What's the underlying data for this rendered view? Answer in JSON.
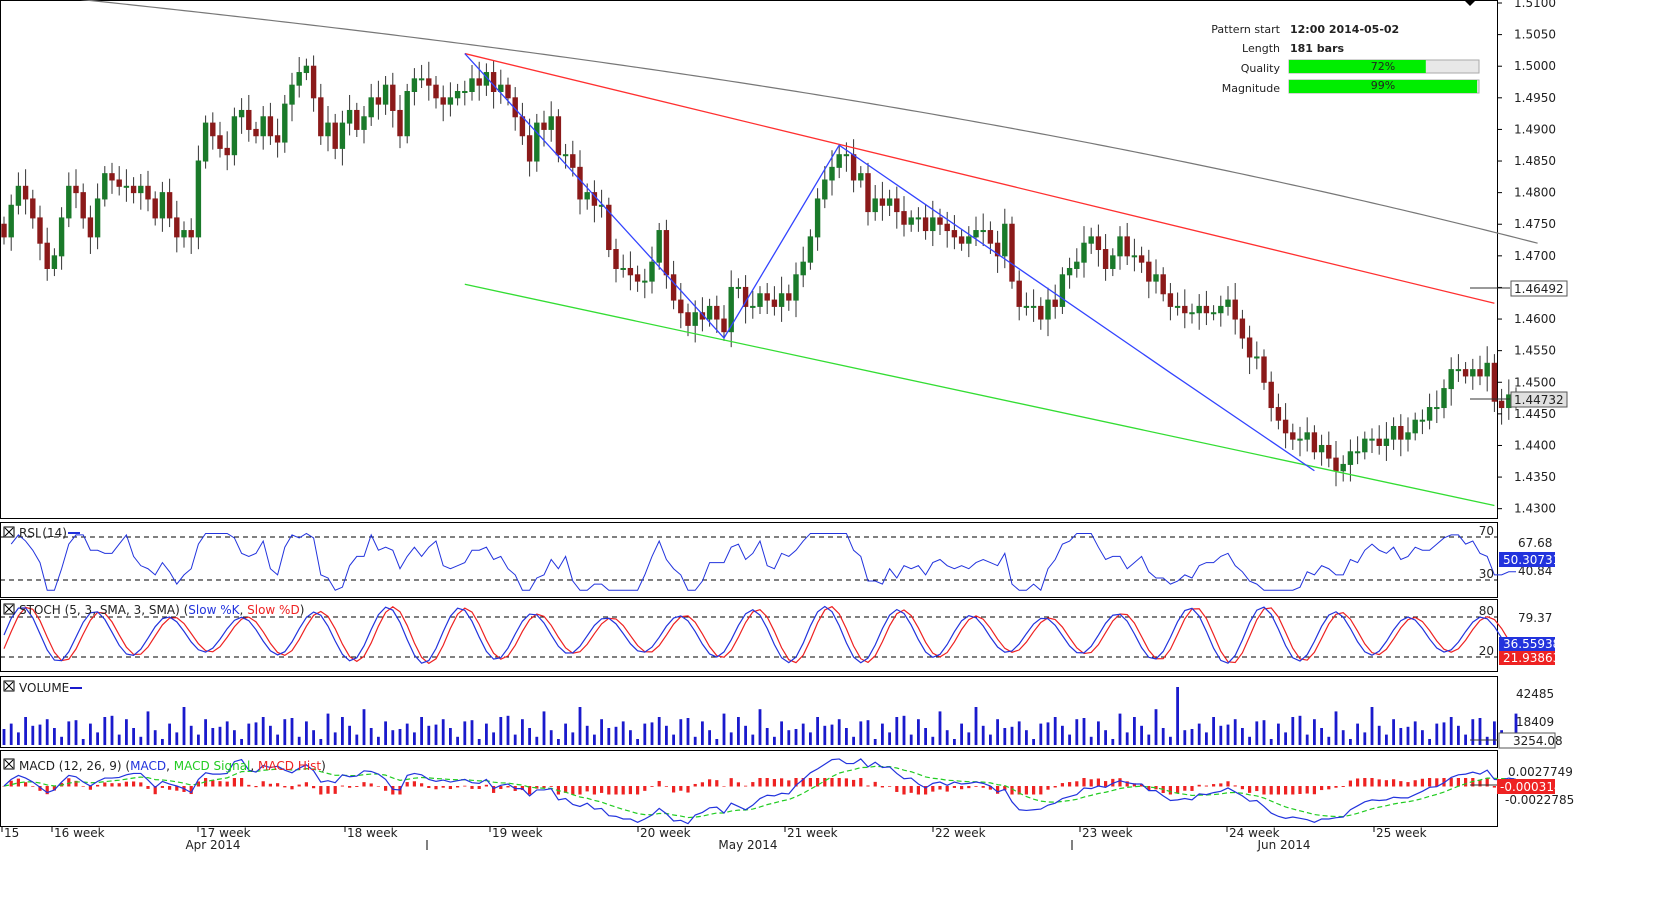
{
  "info": {
    "pattern_start_label": "Pattern start",
    "pattern_start_value": "12:00 2014-05-02",
    "length_label": "Length",
    "length_value": "181 bars",
    "quality_label": "Quality",
    "quality_value": "72%",
    "quality_fraction": 0.72,
    "magnitude_label": "Magnitude",
    "magnitude_value": "99%",
    "magnitude_fraction": 0.99
  },
  "panels": {
    "rsi_label": "RSI (14)",
    "stoch_label": "STOCH (5, 3, SMA, 3, SMA)",
    "stoch_k_label": "Slow %K",
    "stoch_d_label": "Slow %D",
    "volume_label": "VOLUME",
    "macd_label": "MACD (12, 26, 9)",
    "macd_line_label": "MACD",
    "macd_signal_label": "MACD Signal",
    "macd_hist_label": "MACD Hist"
  },
  "axis_labels": {
    "rsi_ticks": [
      "70",
      "67.68",
      "40.84",
      "30"
    ],
    "rsi_current": "50.30731",
    "stoch_ticks": [
      "80",
      "79.37",
      "20"
    ],
    "stoch_current_k": "36.55938",
    "stoch_current_d": "21.93863",
    "volume_ticks": [
      "42485",
      "18409"
    ],
    "volume_current": "3254.08",
    "macd_ticks": [
      "0.0027749",
      "-0.0022785"
    ],
    "macd_current": "-0.0003146"
  },
  "colors": {
    "up_candle": "#1a7a2a",
    "down_candle": "#8b1a1a",
    "channel_upper": "#ff3030",
    "channel_lower": "#33dd33",
    "zigzag": "#3344ff",
    "moving_average": "#777777",
    "rsi_line": "#2233dd",
    "stoch_k": "#2233dd",
    "stoch_d": "#ee2222",
    "volume": "#1a1acc",
    "macd_line": "#2233dd",
    "macd_signal": "#22cc22",
    "macd_hist": "#ee2222",
    "quality_bar": "#00ee00"
  },
  "chart_data": {
    "type": "candlestick",
    "instrument_timeframe_note": "",
    "y_ticks": [
      "1.5100",
      "1.5050",
      "1.5000",
      "1.4950",
      "1.4900",
      "1.4850",
      "1.4800",
      "1.4750",
      "1.4700",
      "1.4650",
      "1.4600",
      "1.4550",
      "1.4500",
      "1.4450",
      "1.4400",
      "1.4350",
      "1.4300"
    ],
    "ylim": [
      1.429,
      1.51
    ],
    "current_price": "1.44732",
    "moving_average_value": "1.46492",
    "week_labels": [
      "15",
      "16 week",
      "17 week",
      "18 week",
      "19 week",
      "20 week",
      "21 week",
      "22 week",
      "23 week",
      "24 week",
      "25 week"
    ],
    "month_labels": [
      "Apr 2014",
      "May 2014",
      "Jun 2014"
    ],
    "channel": {
      "upper": {
        "from_bar": 64,
        "from_price": 1.502,
        "to_bar": 207,
        "to_price": 1.4625
      },
      "lower": {
        "from_bar": 64,
        "from_price": 1.4655,
        "to_bar": 207,
        "to_price": 1.4305
      }
    },
    "zigzag": [
      {
        "bar": 64,
        "price": 1.502
      },
      {
        "bar": 100,
        "price": 1.457
      },
      {
        "bar": 116,
        "price": 1.4875
      },
      {
        "bar": 162,
        "price": 1.4515
      },
      {
        "bar": 182,
        "price": 1.436
      }
    ],
    "closes": [
      1.473,
      1.478,
      1.481,
      1.479,
      1.476,
      1.472,
      1.468,
      1.47,
      1.476,
      1.481,
      1.48,
      1.476,
      1.473,
      1.479,
      1.483,
      1.482,
      1.481,
      1.481,
      1.48,
      1.481,
      1.479,
      1.476,
      1.48,
      1.476,
      1.473,
      1.474,
      1.473,
      1.485,
      1.491,
      1.489,
      1.487,
      1.486,
      1.492,
      1.493,
      1.49,
      1.489,
      1.492,
      1.489,
      1.488,
      1.494,
      1.497,
      1.499,
      1.5,
      1.495,
      1.489,
      1.491,
      1.487,
      1.491,
      1.493,
      1.49,
      1.492,
      1.495,
      1.494,
      1.497,
      1.493,
      1.489,
      1.496,
      1.498,
      1.498,
      1.497,
      1.495,
      1.494,
      1.495,
      1.496,
      1.496,
      1.498,
      1.497,
      1.499,
      1.496,
      1.497,
      1.495,
      1.492,
      1.489,
      1.485,
      1.491,
      1.49,
      1.492,
      1.486,
      1.486,
      1.484,
      1.479,
      1.48,
      1.478,
      1.478,
      1.471,
      1.468,
      1.468,
      1.467,
      1.466,
      1.466,
      1.469,
      1.474,
      1.467,
      1.463,
      1.461,
      1.459,
      1.461,
      1.46,
      1.462,
      1.46,
      1.458,
      1.465,
      1.465,
      1.462,
      1.462,
      1.464,
      1.463,
      1.462,
      1.464,
      1.463,
      1.467,
      1.469,
      1.473,
      1.479,
      1.482,
      1.484,
      1.486,
      1.486,
      1.482,
      1.483,
      1.477,
      1.479,
      1.478,
      1.479,
      1.477,
      1.475,
      1.476,
      1.476,
      1.474,
      1.476,
      1.475,
      1.474,
      1.473,
      1.472,
      1.473,
      1.474,
      1.474,
      1.472,
      1.47,
      1.475,
      1.466,
      1.462,
      1.462,
      1.462,
      1.46,
      1.463,
      1.462,
      1.467,
      1.468,
      1.469,
      1.472,
      1.473,
      1.471,
      1.468,
      1.47,
      1.473,
      1.47,
      1.47,
      1.469,
      1.466,
      1.467,
      1.464,
      1.462,
      1.462,
      1.461,
      1.461,
      1.462,
      1.461,
      1.461,
      1.462,
      1.463,
      1.46,
      1.457,
      1.454,
      1.454,
      1.45,
      1.446,
      1.444,
      1.442,
      1.441,
      1.441,
      1.442,
      1.439,
      1.44,
      1.438,
      1.436,
      1.437,
      1.439,
      1.439,
      1.441,
      1.441,
      1.44,
      1.441,
      1.443,
      1.441,
      1.442,
      1.444,
      1.444,
      1.446,
      1.446,
      1.449,
      1.452,
      1.452,
      1.451,
      1.452,
      1.451,
      1.453,
      1.447,
      1.446,
      1.448,
      1.447
    ]
  }
}
